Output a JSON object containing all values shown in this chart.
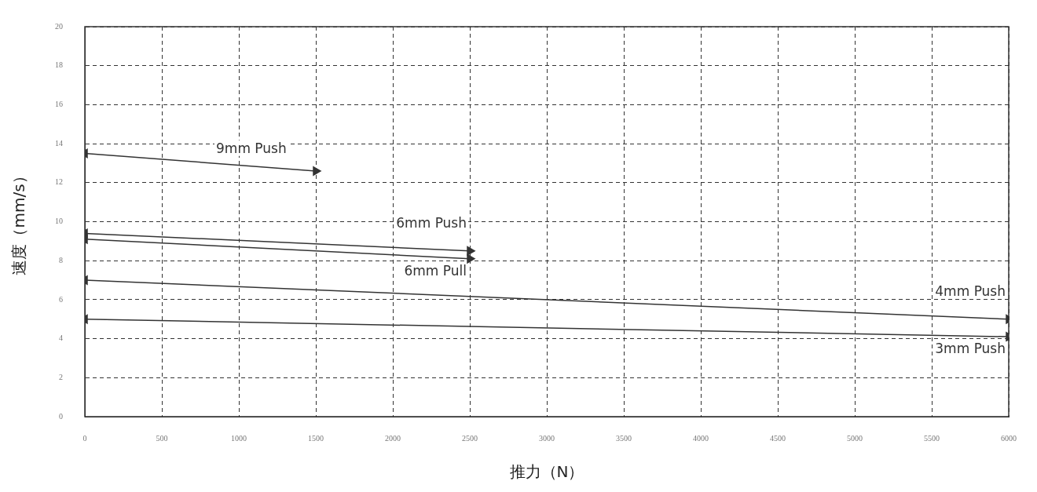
{
  "chart_data": {
    "type": "line",
    "xlabel": "推力（N）",
    "ylabel": "速度（mm/s）",
    "xlim": [
      0,
      6000
    ],
    "xticks": [
      0,
      500,
      1000,
      1500,
      2000,
      2500,
      3000,
      3500,
      4000,
      4500,
      5000,
      5500,
      6000
    ],
    "ylim": [
      0,
      20
    ],
    "yticks": [
      0,
      2,
      4,
      6,
      8,
      10,
      12,
      14,
      16,
      18,
      20
    ],
    "grid": true,
    "legend": false,
    "marker": "triangle",
    "line_style": "solid",
    "series": [
      {
        "name": "9mm Push",
        "color": "#333333",
        "x": [
          0,
          1500
        ],
        "values": [
          13.5,
          12.6
        ]
      },
      {
        "name": "6mm Push",
        "color": "#333333",
        "x": [
          0,
          2500
        ],
        "values": [
          9.4,
          8.5
        ]
      },
      {
        "name": "6mm Pull",
        "color": "#333333",
        "x": [
          0,
          2500
        ],
        "values": [
          9.1,
          8.1
        ]
      },
      {
        "name": "4mm Push",
        "color": "#333333",
        "x": [
          0,
          6000
        ],
        "values": [
          7.0,
          5.0
        ]
      },
      {
        "name": "3mm Push",
        "color": "#333333",
        "x": [
          0,
          6000
        ],
        "values": [
          5.0,
          4.1
        ]
      }
    ]
  }
}
